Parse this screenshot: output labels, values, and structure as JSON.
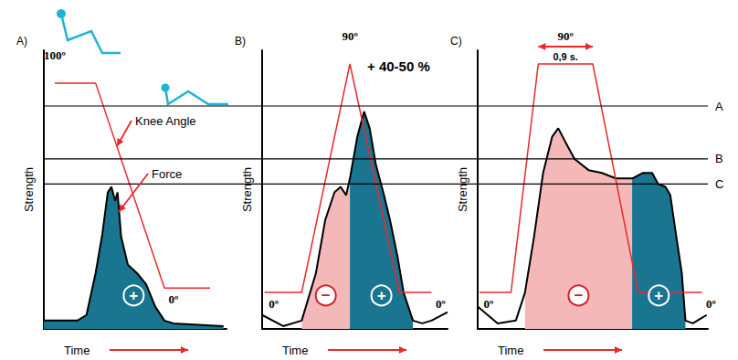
{
  "levels": [
    {
      "label": "A",
      "value": 80
    },
    {
      "label": "B",
      "value": 61
    },
    {
      "label": "C",
      "value": 52
    }
  ],
  "chart_data": [
    {
      "type": "line",
      "title": "A)",
      "x_label": "Time",
      "y_label": "Strength",
      "xlim": [
        0,
        3
      ],
      "ylim": [
        0,
        100
      ],
      "y2lim": [
        -20,
        116
      ],
      "tick_labels": false,
      "series": [
        {
          "name": "Force",
          "color": "#000000",
          "x": [
            0,
            0.55,
            0.7,
            0.85,
            0.96,
            1.05,
            1.11,
            1.17,
            1.21,
            1.27,
            1.38,
            1.53,
            1.68,
            1.83,
            1.98,
            2.13,
            2.95
          ],
          "values": [
            3,
            3,
            5,
            20,
            34,
            49,
            51,
            46,
            49,
            33,
            23,
            20,
            16,
            8,
            3,
            2,
            1
          ],
          "phases": [
            {
              "label": "+",
              "color": "#1a7590",
              "x": [
                0,
                2.95
              ]
            }
          ]
        },
        {
          "name": "Knee Angle",
          "color": "#e8292b",
          "axis": "y2",
          "x": [
            0.18,
            0.85,
            1.98,
            2.73
          ],
          "values": [
            100,
            100,
            0,
            0
          ],
          "value_labels": [
            "100º",
            null,
            "0º",
            null
          ]
        }
      ]
    },
    {
      "type": "line",
      "title": "B)",
      "x_label": "Time",
      "y_label": "Strength",
      "xlim": [
        0,
        3
      ],
      "ylim": [
        0,
        100
      ],
      "y2lim": [
        -14.4,
        95.4
      ],
      "tick_labels": false,
      "annotations": [
        {
          "text": "+ 40-50 %"
        }
      ],
      "series": [
        {
          "color": "#000000",
          "x": [
            0,
            0.34,
            0.64,
            0.87,
            1.02,
            1.17,
            1.27,
            1.36,
            1.42,
            1.54,
            1.65,
            1.74,
            1.84,
            1.96,
            2.07,
            2.19,
            2.29,
            2.44,
            2.59,
            2.74,
            3.0
          ],
          "values": [
            5,
            1,
            3,
            20,
            39,
            49,
            51,
            48,
            54,
            69,
            78,
            72,
            59,
            49,
            39,
            26,
            13,
            3,
            2,
            3,
            6
          ],
          "phases": [
            {
              "label": "−",
              "color": "#f5b8b8",
              "x": [
                0.64,
                1.42
              ]
            },
            {
              "label": "+",
              "color": "#1a7590",
              "x": [
                1.42,
                2.44
              ]
            }
          ]
        },
        {
          "color": "#e8292b",
          "axis": "y2",
          "x": [
            0.04,
            0.64,
            1.42,
            2.22,
            2.74
          ],
          "values": [
            0,
            0,
            90,
            0,
            0
          ],
          "value_labels": [
            "0º",
            null,
            "90º",
            null,
            "0º"
          ]
        }
      ]
    },
    {
      "type": "line",
      "title": "C)",
      "x_label": "Time",
      "y_label": "Strength",
      "xlim": [
        0,
        3.8
      ],
      "ylim": [
        0,
        100
      ],
      "y2lim": [
        -14.4,
        95.4
      ],
      "tick_labels": false,
      "annotations": [
        {
          "text": "0,9 s.",
          "x": [
            1.0,
            1.9
          ]
        }
      ],
      "series": [
        {
          "color": "#000000",
          "x": [
            0,
            0.33,
            0.63,
            0.78,
            0.93,
            1.08,
            1.23,
            1.33,
            1.45,
            1.6,
            1.83,
            2.05,
            2.28,
            2.55,
            2.73,
            2.88,
            2.98,
            3.1,
            3.18,
            3.28,
            3.37,
            3.43,
            3.55,
            3.78
          ],
          "values": [
            8,
            2,
            3,
            13,
            33,
            56,
            69,
            72,
            67,
            61,
            57,
            56,
            54,
            54,
            56,
            56,
            52,
            51,
            48,
            33,
            20,
            3,
            2,
            5
          ],
          "phases": [
            {
              "label": "−",
              "color": "#f5b8b8",
              "x": [
                0.78,
                2.55
              ]
            },
            {
              "label": "+",
              "color": "#1a7590",
              "x": [
                2.55,
                3.43
              ]
            }
          ]
        },
        {
          "color": "#e8292b",
          "axis": "y2",
          "x": [
            0.03,
            0.55,
            1.0,
            1.45,
            1.9,
            2.65,
            3.7
          ],
          "values": [
            0,
            0,
            90,
            90,
            90,
            0,
            0
          ],
          "value_labels": [
            "0º",
            null,
            null,
            "90º",
            null,
            null,
            "0º"
          ]
        }
      ]
    }
  ]
}
